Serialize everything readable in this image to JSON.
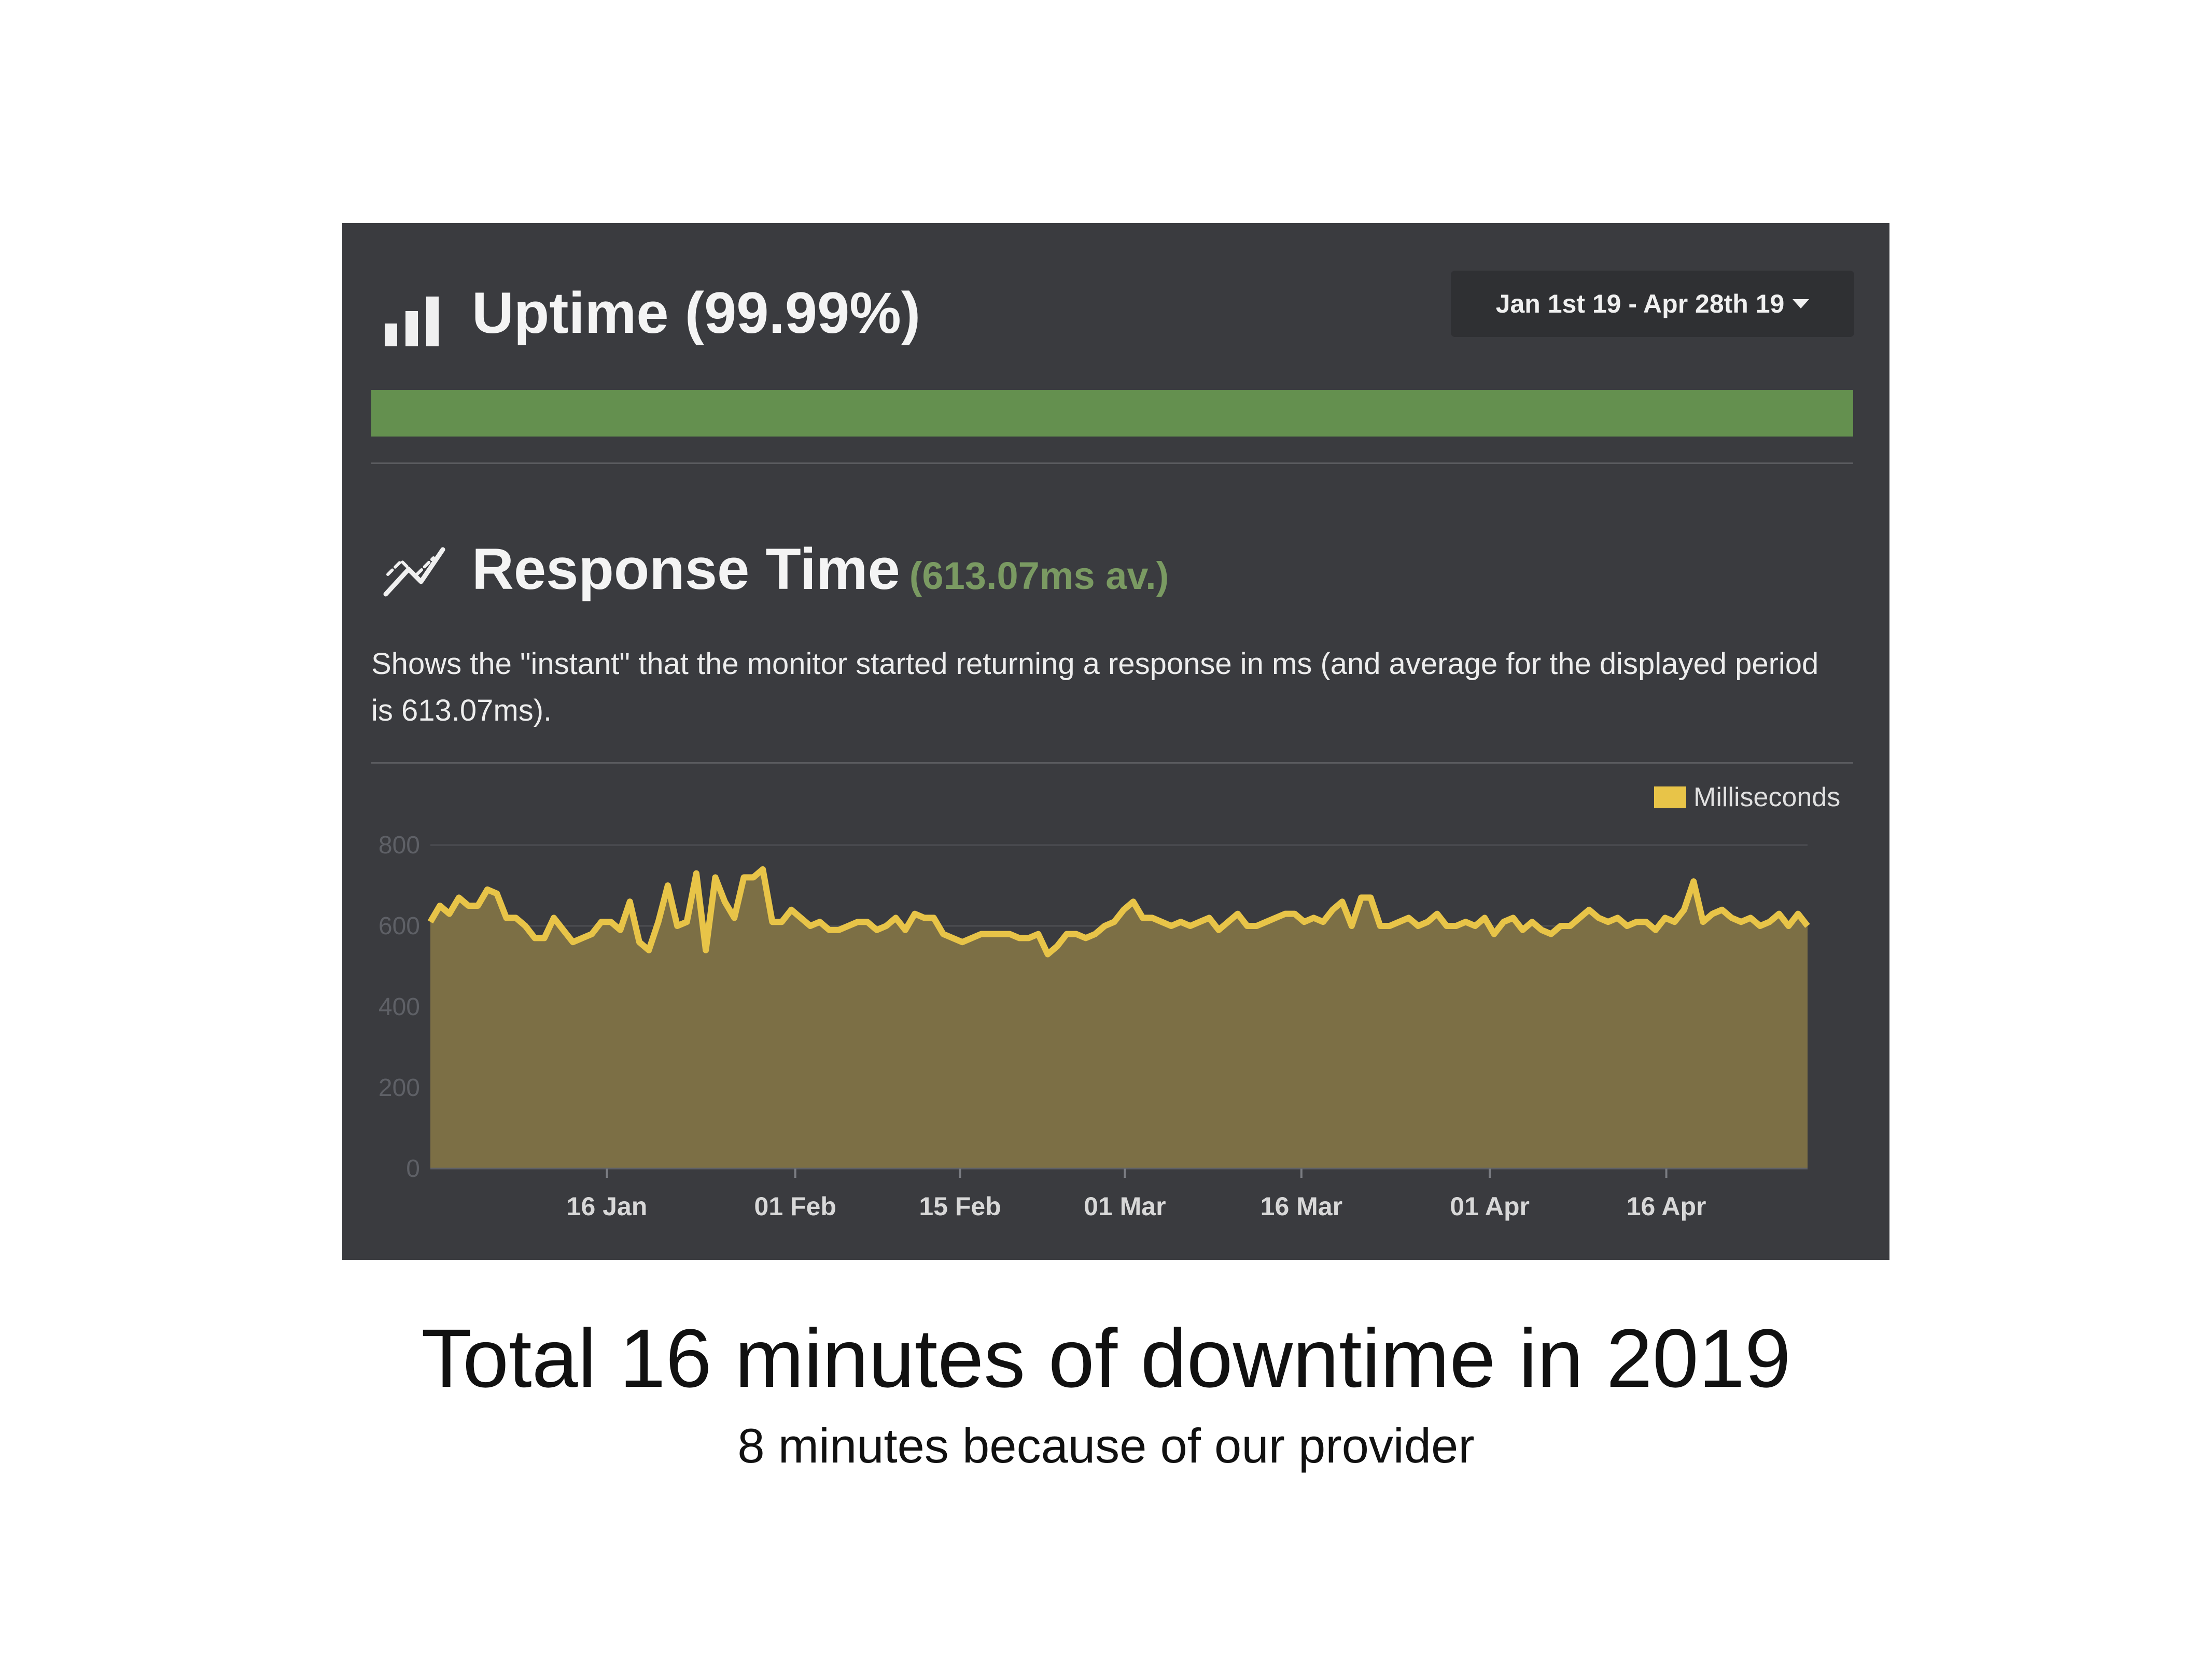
{
  "uptime": {
    "title": "Uptime (99.99%)",
    "date_range": "Jan 1st 19 - Apr 28th 19",
    "bar_color": "#64904f",
    "icon": "bar-chart-icon"
  },
  "response_time": {
    "title": "Response Time",
    "average": "(613.07ms av.)",
    "description": "Shows the \"instant\" that the monitor started returning a response in ms (and average for the displayed period is 613.07ms).",
    "icon": "line-chart-icon"
  },
  "chart_data": {
    "type": "area",
    "legend": [
      "Milliseconds"
    ],
    "legend_position": "top-right",
    "color": "#e8c448",
    "ylim": [
      0,
      800
    ],
    "yticks": [
      "0",
      "200",
      "400",
      "600",
      "800"
    ],
    "xticks": [
      "16 Jan",
      "01 Feb",
      "15 Feb",
      "01 Mar",
      "16 Mar",
      "01 Apr",
      "16 Apr"
    ],
    "grid": true,
    "series": [
      {
        "name": "Milliseconds",
        "values": [
          610,
          650,
          630,
          670,
          650,
          650,
          690,
          680,
          620,
          620,
          600,
          570,
          570,
          620,
          590,
          560,
          570,
          580,
          610,
          610,
          590,
          660,
          560,
          540,
          610,
          700,
          600,
          610,
          730,
          540,
          720,
          660,
          620,
          720,
          720,
          740,
          610,
          610,
          640,
          620,
          600,
          610,
          590,
          590,
          600,
          610,
          610,
          590,
          600,
          620,
          590,
          630,
          620,
          620,
          580,
          570,
          560,
          570,
          580,
          580,
          580,
          580,
          570,
          570,
          580,
          530,
          550,
          580,
          580,
          570,
          580,
          600,
          610,
          640,
          660,
          620,
          620,
          610,
          600,
          610,
          600,
          610,
          620,
          590,
          610,
          630,
          600,
          600,
          610,
          620,
          630,
          630,
          610,
          620,
          610,
          640,
          660,
          600,
          670,
          670,
          600,
          600,
          610,
          620,
          600,
          610,
          630,
          600,
          600,
          610,
          600,
          620,
          580,
          610,
          620,
          590,
          610,
          590,
          580,
          600,
          600,
          620,
          640,
          620,
          610,
          620,
          600,
          610,
          610,
          590,
          620,
          610,
          640,
          710,
          610,
          630,
          640,
          620,
          610,
          620,
          600,
          610,
          630,
          600,
          630,
          600
        ]
      }
    ]
  },
  "caption": {
    "main": "Total 16 minutes of downtime in 2019",
    "sub": "8 minutes because of our provider"
  }
}
